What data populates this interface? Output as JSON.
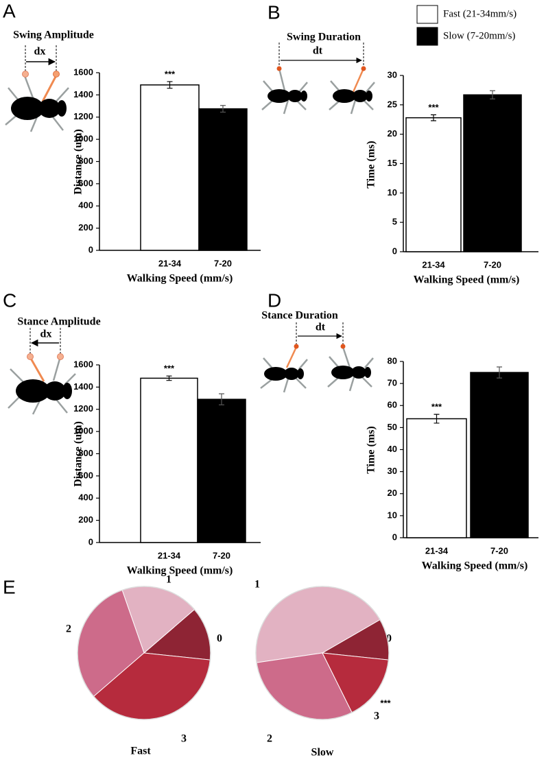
{
  "legend": [
    {
      "name": "Fast (21-34mm/s)",
      "color": "#ffffff"
    },
    {
      "name": "Slow (7-20mm/s)",
      "color": "#000000"
    }
  ],
  "chart_data": [
    {
      "type": "bar",
      "panel": "A",
      "diagram_title": "Swing Amplitude",
      "diagram_label": "dx",
      "y_label": "Distance (um)",
      "x_label": "Walking Speed (mm/s)",
      "categories": [
        "21-34",
        "7-20"
      ],
      "values": [
        1490,
        1275
      ],
      "errors": [
        30,
        30
      ],
      "colors": [
        "#ffffff",
        "#000000"
      ],
      "significance": [
        "***",
        null
      ],
      "ylim": [
        0,
        1600
      ],
      "yticks": [
        0,
        200,
        400,
        600,
        800,
        1000,
        1200,
        1400,
        1600
      ]
    },
    {
      "type": "bar",
      "panel": "B",
      "diagram_title": "Swing Duration",
      "diagram_label": "dt",
      "y_label": "Time (ms)",
      "x_label": "Walking Speed (mm/s)",
      "categories": [
        "21-34",
        "7-20"
      ],
      "values": [
        22.8,
        26.7
      ],
      "errors": [
        0.5,
        0.7
      ],
      "colors": [
        "#ffffff",
        "#000000"
      ],
      "significance": [
        "***",
        null
      ],
      "ylim": [
        0,
        30
      ],
      "yticks": [
        0,
        5,
        10,
        15,
        20,
        25,
        30
      ]
    },
    {
      "type": "bar",
      "panel": "C",
      "diagram_title": "Stance Amplitude",
      "diagram_label": "dx",
      "y_label": "Distance (um)",
      "x_label": "Walking Speed (mm/s)",
      "categories": [
        "21-34",
        "7-20"
      ],
      "values": [
        1480,
        1290
      ],
      "errors": [
        20,
        50
      ],
      "colors": [
        "#ffffff",
        "#000000"
      ],
      "significance": [
        "***",
        null
      ],
      "ylim": [
        0,
        1600
      ],
      "yticks": [
        0,
        200,
        400,
        600,
        800,
        1000,
        1200,
        1400,
        1600
      ]
    },
    {
      "type": "bar",
      "panel": "D",
      "diagram_title": "Stance Duration",
      "diagram_label": "dt",
      "y_label": "Time (ms)",
      "x_label": "Walking Speed (mm/s)",
      "categories": [
        "21-34",
        "7-20"
      ],
      "values": [
        54,
        75
      ],
      "errors": [
        2,
        2.5
      ],
      "colors": [
        "#ffffff",
        "#000000"
      ],
      "significance": [
        "***",
        null
      ],
      "ylim": [
        0,
        80
      ],
      "yticks": [
        0,
        10,
        20,
        30,
        40,
        50,
        60,
        70,
        80
      ]
    },
    {
      "type": "pie",
      "panel": "E",
      "title": "Fast",
      "categories": [
        "0",
        "1",
        "2",
        "3"
      ],
      "values": [
        13,
        19,
        31,
        37
      ],
      "colors": [
        "#8e2434",
        "#e2b2c2",
        "#cd6b8a",
        "#b62b3d"
      ]
    },
    {
      "type": "pie",
      "title": "Slow",
      "categories": [
        "0",
        "1",
        "2",
        "3"
      ],
      "values": [
        10,
        44,
        30,
        16
      ],
      "colors": [
        "#8e2434",
        "#e2b2c2",
        "#cd6b8a",
        "#b62b3d"
      ],
      "significance": [
        null,
        null,
        null,
        "***"
      ]
    }
  ]
}
